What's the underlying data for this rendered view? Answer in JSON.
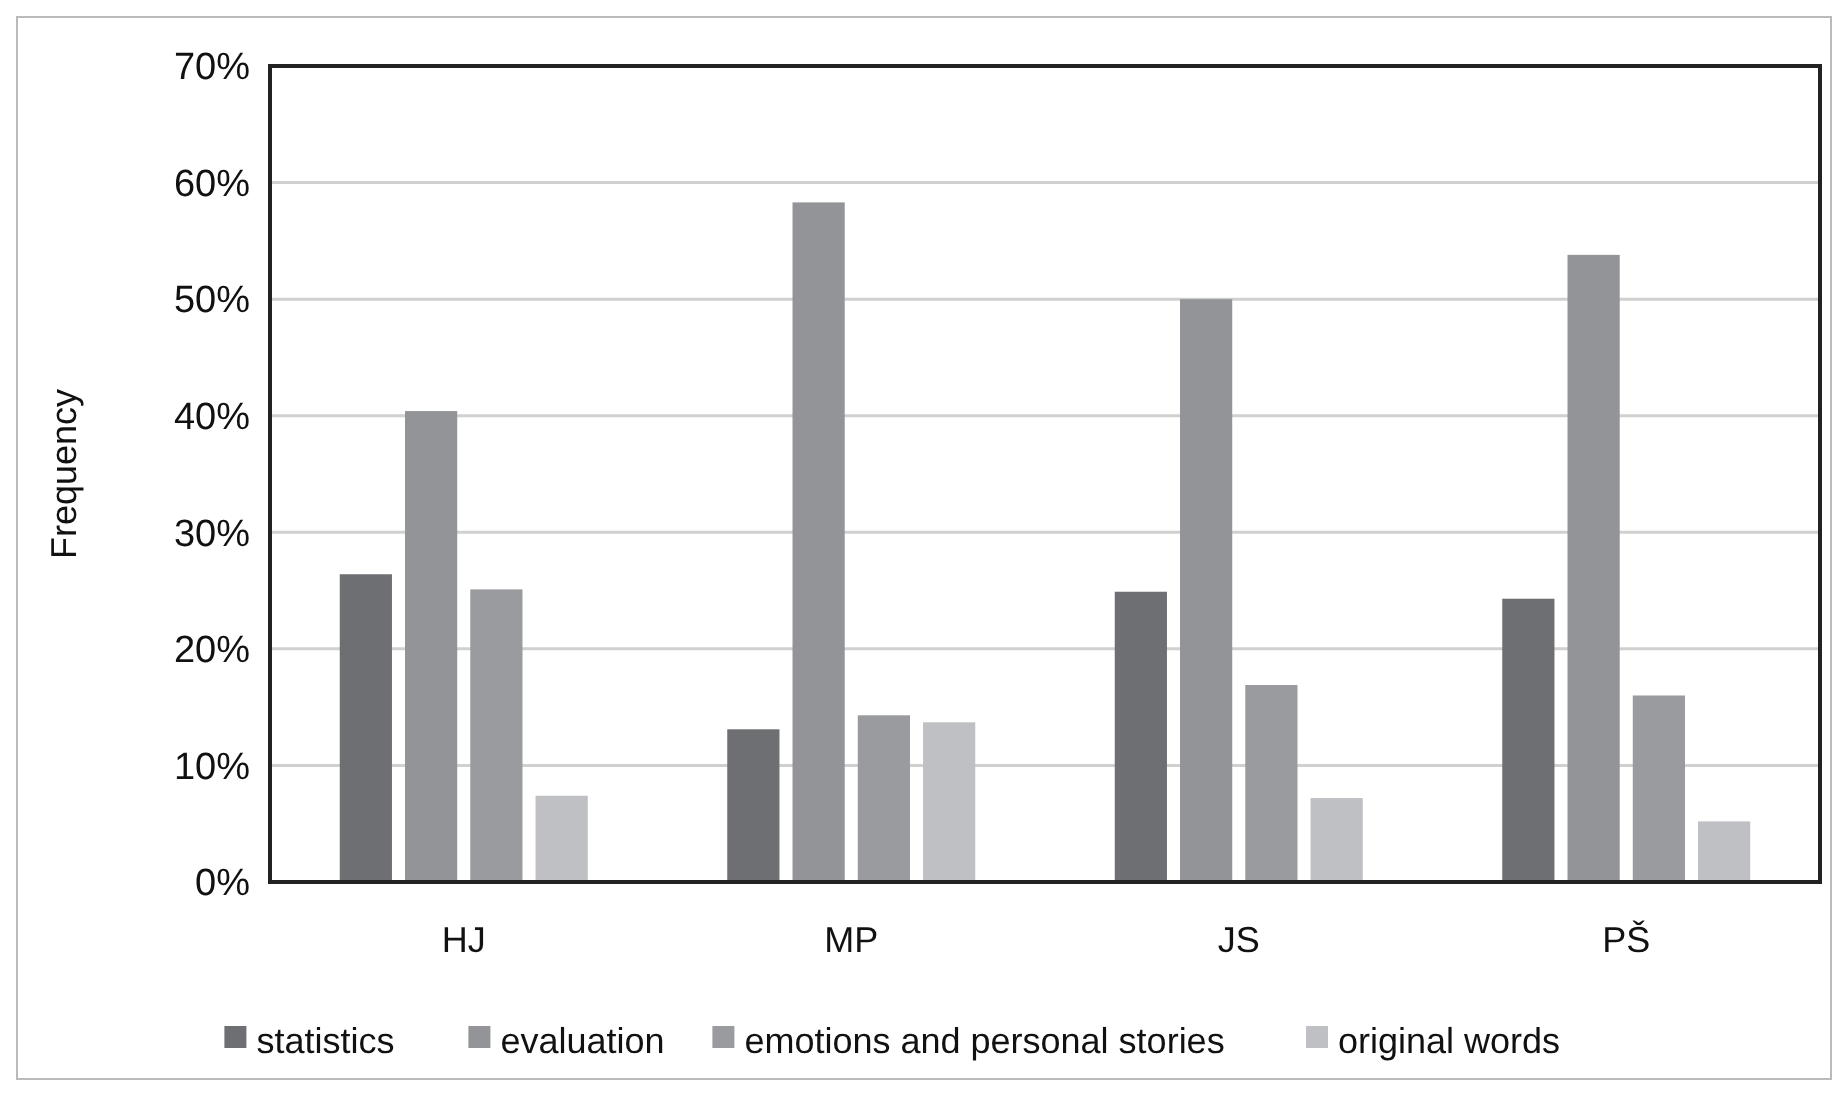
{
  "chart_data": {
    "type": "bar",
    "ylabel": "Frequency",
    "categories": [
      "HJ",
      "MP",
      "JS",
      "PŠ"
    ],
    "series": [
      {
        "name": "statistics",
        "color": "#6e6f73",
        "values": [
          26.4,
          13.1,
          24.9,
          24.3
        ]
      },
      {
        "name": "evaluation",
        "color": "#939498",
        "values": [
          40.4,
          58.3,
          50.0,
          53.8
        ]
      },
      {
        "name": "emotions and personal stories",
        "color": "#9a9b9f",
        "values": [
          25.1,
          14.3,
          16.9,
          16.0
        ]
      },
      {
        "name": "original words",
        "color": "#bfc0c3",
        "values": [
          7.4,
          13.7,
          7.2,
          5.2
        ]
      }
    ],
    "ylim": [
      0,
      70
    ],
    "yticks": [
      {
        "value": 0,
        "label": "0%"
      },
      {
        "value": 10,
        "label": "10%"
      },
      {
        "value": 20,
        "label": "20%"
      },
      {
        "value": 30,
        "label": "30%"
      },
      {
        "value": 40,
        "label": "40%"
      },
      {
        "value": 50,
        "label": "50%"
      },
      {
        "value": 60,
        "label": "60%"
      },
      {
        "value": 70,
        "label": "70%"
      }
    ],
    "grid": "y",
    "legend": "bottom"
  }
}
